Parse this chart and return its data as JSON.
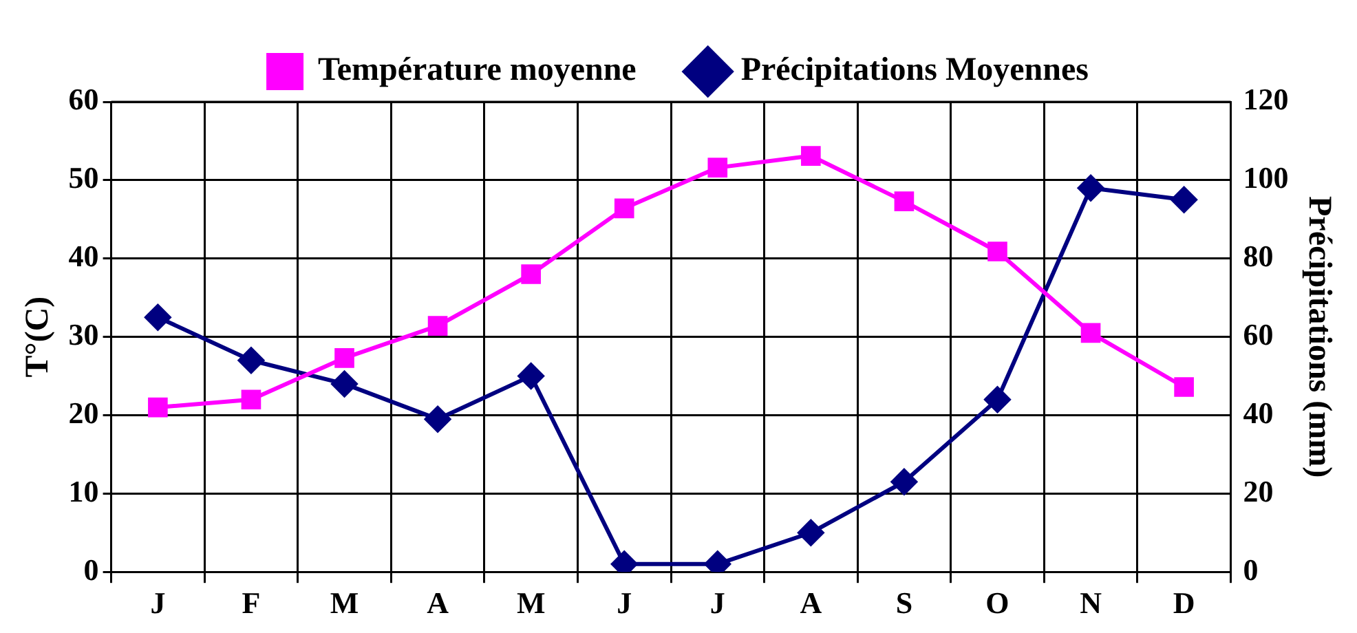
{
  "chart_data": {
    "type": "line",
    "categories": [
      "J",
      "F",
      "M",
      "A",
      "M",
      "J",
      "J",
      "A",
      "S",
      "O",
      "N",
      "D"
    ],
    "ylabel": "T°(C)",
    "y2label": "Précipitations (mm)",
    "ylim": [
      0,
      60
    ],
    "yticks": [
      0,
      10,
      20,
      30,
      40,
      50,
      60
    ],
    "y2lim": [
      0,
      120
    ],
    "y2ticks": [
      0,
      20,
      40,
      60,
      80,
      100,
      120
    ],
    "grid": true,
    "legend": "top",
    "line_style": "solid",
    "series": [
      {
        "name": "Température moyenne",
        "color": "#ff00ff",
        "marker": "square",
        "values": [
          21,
          22,
          27.3,
          31.4,
          38,
          46.4,
          51.6,
          53.1,
          47.3,
          40.9,
          30.5,
          23.6
        ]
      },
      {
        "name": "Précipitations Moyennes",
        "color": "#000080",
        "marker": "diamond",
        "axis": "y2",
        "values": [
          65,
          54,
          48,
          39,
          50,
          2,
          2,
          10,
          23,
          44,
          98,
          95
        ]
      }
    ]
  }
}
